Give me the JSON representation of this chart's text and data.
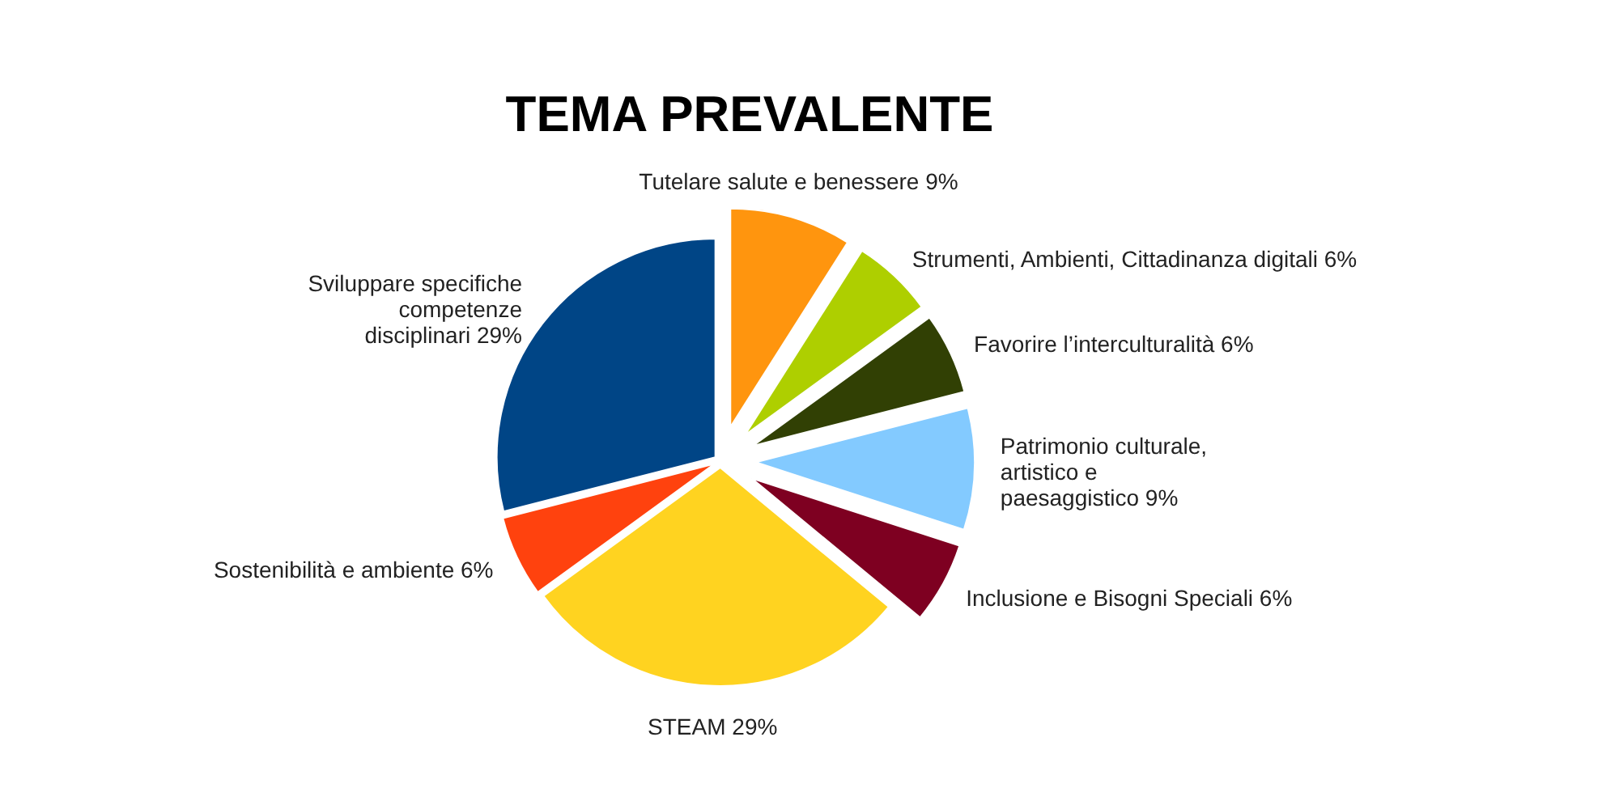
{
  "chart_data": {
    "type": "pie",
    "title": "TEMA PREVALENTE",
    "categories": [
      "Tutelare salute e benessere",
      "Strumenti, Ambienti, Cittadinanza digitali",
      "Favorire l’interculturalità",
      "Patrimonio culturale, artistico e paesaggistico",
      "Inclusione e Bisogni Speciali",
      "STEAM",
      "Sostenibilità e ambiente",
      "Sviluppare specifiche competenze disciplinari"
    ],
    "values": [
      9,
      6,
      6,
      9,
      6,
      29,
      6,
      29
    ],
    "value_labels": [
      "9%",
      "6%",
      "6%",
      "9%",
      "6%",
      "29%",
      "6%",
      "29%"
    ],
    "colors": [
      "#ff950e",
      "#aecf00",
      "#314004",
      "#83caff",
      "#7e0021",
      "#ffd320",
      "#ff420e",
      "#004586"
    ]
  }
}
